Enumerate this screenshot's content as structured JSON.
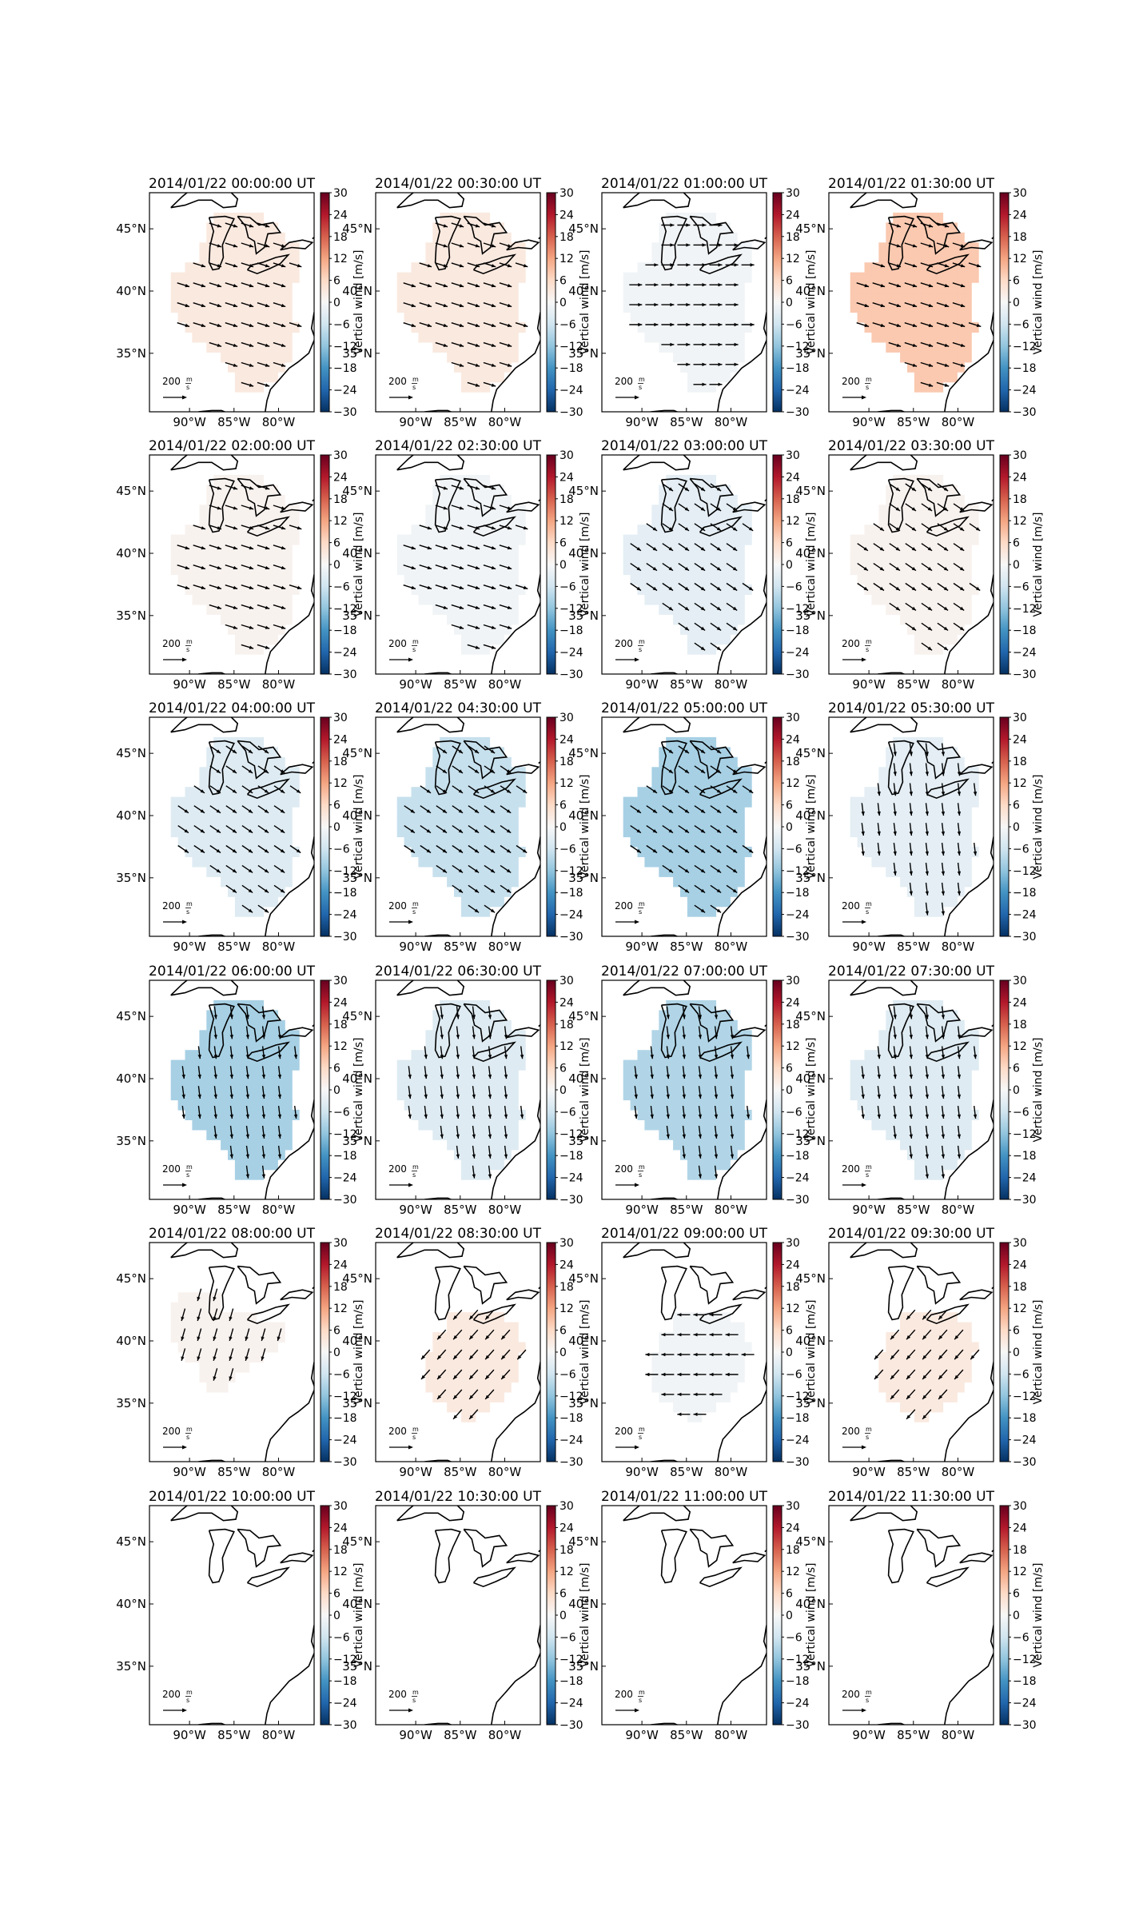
{
  "chart_data": {
    "type": "heatmap",
    "layout": "6 rows x 4 columns of map panels",
    "x_ticks": [
      "90°W",
      "85°W",
      "80°W"
    ],
    "y_ticks": [
      "45°N",
      "40°N",
      "35°N"
    ],
    "colorbar": {
      "label": "Vertical wind [m/s]",
      "ticks": [
        "30",
        "24",
        "18",
        "12",
        "6",
        "0",
        "−6",
        "−12",
        "−18",
        "−24",
        "−30"
      ],
      "range": [
        -30,
        30
      ],
      "colormap": "RdBu_r"
    },
    "scale_label": "200",
    "scale_unit_num": "m",
    "scale_unit_den": "s",
    "panels": [
      {
        "title": "2014/01/22 00:00:00 UT",
        "vertical_wind": 3,
        "region": "full",
        "arrow_dir": "ESE"
      },
      {
        "title": "2014/01/22 00:30:00 UT",
        "vertical_wind": 3,
        "region": "full",
        "arrow_dir": "ESE"
      },
      {
        "title": "2014/01/22 01:00:00 UT",
        "vertical_wind": -1,
        "region": "full",
        "arrow_dir": "E"
      },
      {
        "title": "2014/01/22 01:30:00 UT",
        "vertical_wind": 8,
        "region": "full",
        "arrow_dir": "ESE"
      },
      {
        "title": "2014/01/22 02:00:00 UT",
        "vertical_wind": 1,
        "region": "full",
        "arrow_dir": "ESE"
      },
      {
        "title": "2014/01/22 02:30:00 UT",
        "vertical_wind": -1,
        "region": "full",
        "arrow_dir": "ESE"
      },
      {
        "title": "2014/01/22 03:00:00 UT",
        "vertical_wind": -3,
        "region": "full",
        "arrow_dir": "SE"
      },
      {
        "title": "2014/01/22 03:30:00 UT",
        "vertical_wind": 1,
        "region": "full",
        "arrow_dir": "SE"
      },
      {
        "title": "2014/01/22 04:00:00 UT",
        "vertical_wind": -4,
        "region": "full",
        "arrow_dir": "SE"
      },
      {
        "title": "2014/01/22 04:30:00 UT",
        "vertical_wind": -7,
        "region": "full",
        "arrow_dir": "SE"
      },
      {
        "title": "2014/01/22 05:00:00 UT",
        "vertical_wind": -10,
        "region": "full",
        "arrow_dir": "SE"
      },
      {
        "title": "2014/01/22 05:30:00 UT",
        "vertical_wind": -3,
        "region": "full",
        "arrow_dir": "S"
      },
      {
        "title": "2014/01/22 06:00:00 UT",
        "vertical_wind": -10,
        "region": "full",
        "arrow_dir": "S"
      },
      {
        "title": "2014/01/22 06:30:00 UT",
        "vertical_wind": -4,
        "region": "full",
        "arrow_dir": "S"
      },
      {
        "title": "2014/01/22 07:00:00 UT",
        "vertical_wind": -9,
        "region": "full",
        "arrow_dir": "S"
      },
      {
        "title": "2014/01/22 07:30:00 UT",
        "vertical_wind": -4,
        "region": "full",
        "arrow_dir": "S"
      },
      {
        "title": "2014/01/22 08:00:00 UT",
        "vertical_wind": 1,
        "region": "upper",
        "arrow_dir": "SSW"
      },
      {
        "title": "2014/01/22 08:30:00 UT",
        "vertical_wind": 3,
        "region": "lower",
        "arrow_dir": "SW"
      },
      {
        "title": "2014/01/22 09:00:00 UT",
        "vertical_wind": -1,
        "region": "lower",
        "arrow_dir": "W"
      },
      {
        "title": "2014/01/22 09:30:00 UT",
        "vertical_wind": 3,
        "region": "lower",
        "arrow_dir": "SW"
      },
      {
        "title": "2014/01/22 10:00:00 UT",
        "vertical_wind": 0,
        "region": "none",
        "arrow_dir": "none"
      },
      {
        "title": "2014/01/22 10:30:00 UT",
        "vertical_wind": 0,
        "region": "none",
        "arrow_dir": "none"
      },
      {
        "title": "2014/01/22 11:00:00 UT",
        "vertical_wind": 0,
        "region": "none",
        "arrow_dir": "none"
      },
      {
        "title": "2014/01/22 11:30:00 UT",
        "vertical_wind": 0,
        "region": "none",
        "arrow_dir": "none"
      }
    ]
  }
}
